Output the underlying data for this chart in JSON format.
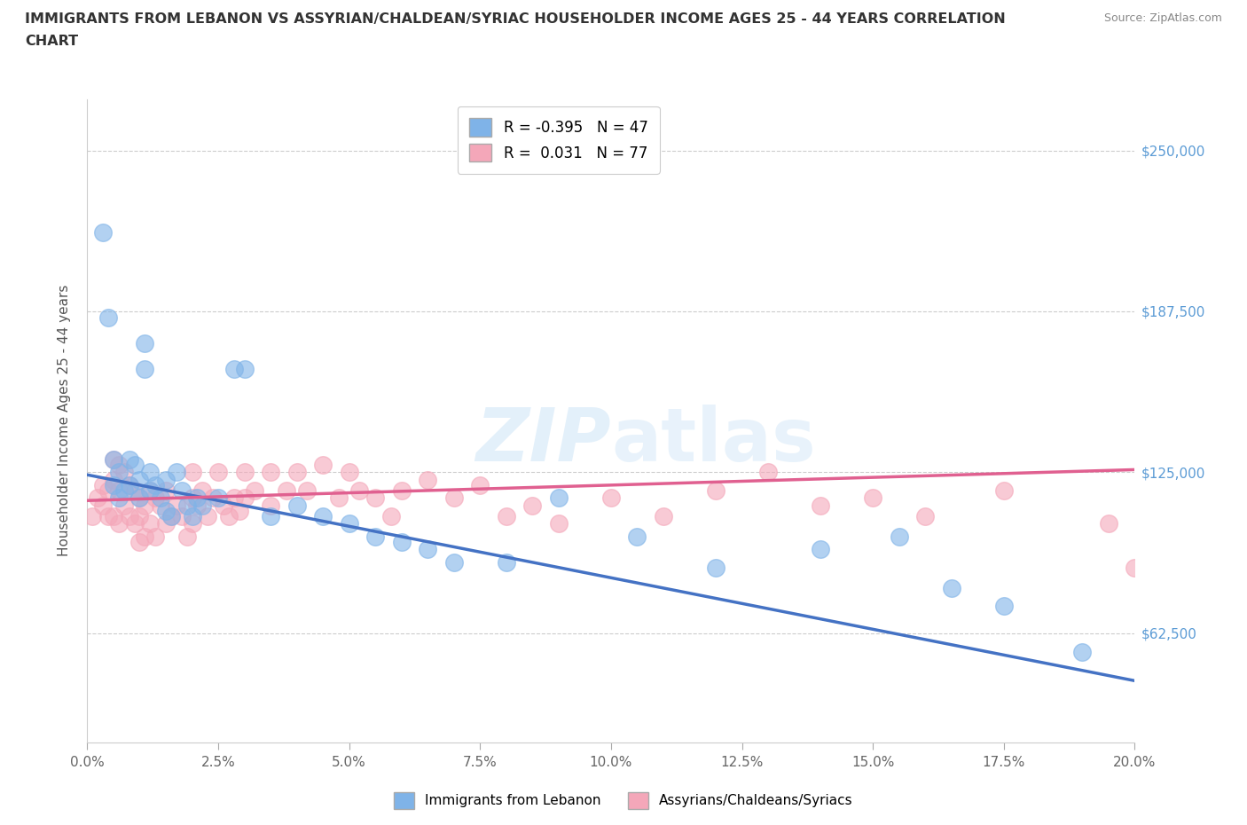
{
  "title": "IMMIGRANTS FROM LEBANON VS ASSYRIAN/CHALDEAN/SYRIAC HOUSEHOLDER INCOME AGES 25 - 44 YEARS CORRELATION\nCHART",
  "source": "Source: ZipAtlas.com",
  "xlabel_ticks": [
    "0.0%",
    "2.5%",
    "5.0%",
    "7.5%",
    "10.0%",
    "12.5%",
    "15.0%",
    "17.5%",
    "20.0%"
  ],
  "xlabel_vals": [
    0.0,
    2.5,
    5.0,
    7.5,
    10.0,
    12.5,
    15.0,
    17.5,
    20.0
  ],
  "ylabel_ticks": [
    "$62,500",
    "$125,000",
    "$187,500",
    "$250,000"
  ],
  "ylabel_vals": [
    62500,
    125000,
    187500,
    250000
  ],
  "xmin": 0.0,
  "xmax": 20.0,
  "ymin": 20000,
  "ymax": 270000,
  "R_lebanon": -0.395,
  "N_lebanon": 47,
  "R_assyrian": 0.031,
  "N_assyrian": 77,
  "color_lebanon": "#7fb3e8",
  "color_assyrian": "#f4a7b9",
  "line_color_lebanon": "#4472c4",
  "line_color_assyrian": "#e06090",
  "legend_label_lebanon": "Immigrants from Lebanon",
  "legend_label_assyrian": "Assyrians/Chaldeans/Syriacs",
  "watermark": "ZIPatlas",
  "scatter_lebanon_x": [
    0.3,
    0.4,
    0.5,
    0.5,
    0.6,
    0.6,
    0.7,
    0.8,
    0.8,
    0.9,
    1.0,
    1.0,
    1.1,
    1.1,
    1.2,
    1.2,
    1.3,
    1.4,
    1.5,
    1.5,
    1.6,
    1.7,
    1.8,
    1.9,
    2.0,
    2.1,
    2.2,
    2.5,
    2.8,
    3.0,
    3.5,
    4.0,
    4.5,
    5.0,
    5.5,
    6.0,
    6.5,
    7.0,
    8.0,
    9.0,
    10.5,
    12.0,
    14.0,
    15.5,
    16.5,
    17.5,
    19.0
  ],
  "scatter_lebanon_y": [
    218000,
    185000,
    130000,
    120000,
    125000,
    115000,
    118000,
    130000,
    120000,
    128000,
    122000,
    115000,
    175000,
    165000,
    125000,
    118000,
    120000,
    115000,
    110000,
    122000,
    108000,
    125000,
    118000,
    112000,
    108000,
    115000,
    112000,
    115000,
    165000,
    165000,
    108000,
    112000,
    108000,
    105000,
    100000,
    98000,
    95000,
    90000,
    90000,
    115000,
    100000,
    88000,
    95000,
    100000,
    80000,
    73000,
    55000
  ],
  "scatter_assyrian_x": [
    0.1,
    0.2,
    0.3,
    0.3,
    0.4,
    0.4,
    0.5,
    0.5,
    0.5,
    0.6,
    0.6,
    0.6,
    0.7,
    0.7,
    0.8,
    0.8,
    0.9,
    0.9,
    1.0,
    1.0,
    1.0,
    1.1,
    1.1,
    1.2,
    1.2,
    1.3,
    1.3,
    1.4,
    1.5,
    1.5,
    1.6,
    1.7,
    1.8,
    1.9,
    2.0,
    2.0,
    2.0,
    2.1,
    2.2,
    2.3,
    2.4,
    2.5,
    2.6,
    2.7,
    2.8,
    2.9,
    3.0,
    3.0,
    3.2,
    3.5,
    3.5,
    3.8,
    4.0,
    4.2,
    4.5,
    4.8,
    5.0,
    5.2,
    5.5,
    5.8,
    6.0,
    6.5,
    7.0,
    7.5,
    8.0,
    8.5,
    9.0,
    10.0,
    11.0,
    12.0,
    13.0,
    14.0,
    15.0,
    16.0,
    17.5,
    19.5,
    20.0
  ],
  "scatter_assyrian_y": [
    108000,
    115000,
    120000,
    112000,
    118000,
    108000,
    130000,
    122000,
    108000,
    128000,
    118000,
    105000,
    125000,
    112000,
    120000,
    108000,
    118000,
    105000,
    115000,
    108000,
    98000,
    112000,
    100000,
    118000,
    105000,
    115000,
    100000,
    112000,
    118000,
    105000,
    108000,
    112000,
    108000,
    100000,
    125000,
    115000,
    105000,
    112000,
    118000,
    108000,
    115000,
    125000,
    112000,
    108000,
    115000,
    110000,
    125000,
    115000,
    118000,
    125000,
    112000,
    118000,
    125000,
    118000,
    128000,
    115000,
    125000,
    118000,
    115000,
    108000,
    118000,
    122000,
    115000,
    120000,
    108000,
    112000,
    105000,
    115000,
    108000,
    118000,
    125000,
    112000,
    115000,
    108000,
    118000,
    105000,
    88000
  ]
}
